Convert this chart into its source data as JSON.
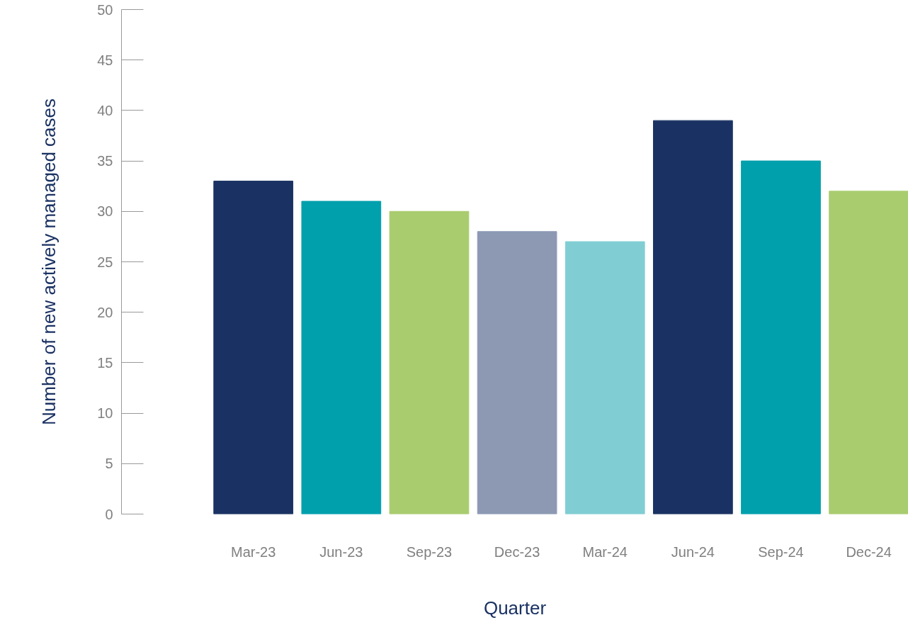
{
  "chart_data": {
    "type": "bar",
    "xlabel": "Quarter",
    "ylabel": "Number of new actively managed cases",
    "categories": [
      "Mar-23",
      "Jun-23",
      "Sep-23",
      "Dec-23",
      "Mar-24",
      "Jun-24",
      "Sep-24",
      "Dec-24"
    ],
    "values": [
      33,
      31,
      30,
      28,
      27,
      39,
      35,
      32
    ],
    "colors": [
      "#1a3263",
      "#00a0ad",
      "#a9cc6f",
      "#8d99b3",
      "#80ced4",
      "#1a3263",
      "#00a0ad",
      "#a9cc6f"
    ],
    "ylim": [
      0,
      50
    ],
    "yticks": [
      0,
      5,
      10,
      15,
      20,
      25,
      30,
      35,
      40,
      45,
      50
    ],
    "grid": false
  }
}
